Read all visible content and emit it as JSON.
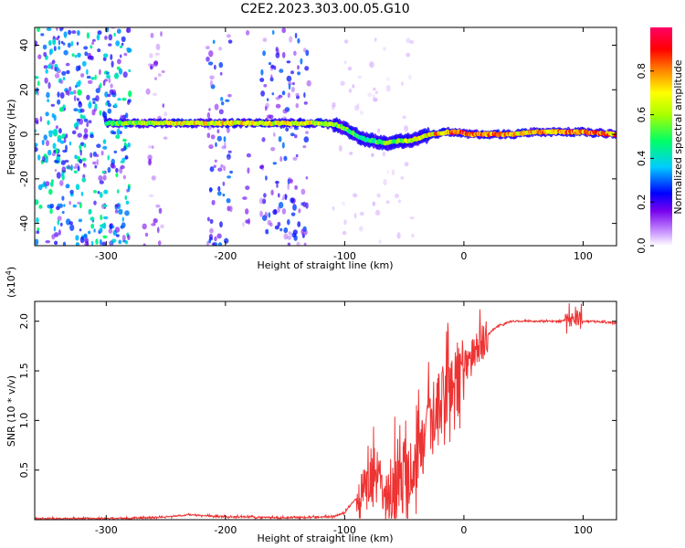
{
  "figure_title": "C2E2.2023.303.00.05.G10",
  "chart_data": [
    {
      "type": "heatmap",
      "title": "C2E2.2023.303.00.05.G10",
      "xlabel": "Height of straight line (km)",
      "ylabel": "Frequency (Hz)",
      "xlim": [
        -360,
        128
      ],
      "ylim": [
        -50,
        48
      ],
      "xticks": [
        -300,
        -200,
        -100,
        0,
        100
      ],
      "yticks": [
        -40,
        -20,
        0,
        20,
        40
      ],
      "xtick_labels": [
        "-300",
        "-200",
        "-100",
        "0",
        "100"
      ],
      "ytick_labels": [
        "-40",
        "-20",
        "0",
        "20",
        "40"
      ],
      "colorbar": {
        "label": "Normalized spectral amplitude",
        "range": [
          0,
          1
        ],
        "ticks": [
          0,
          0.2,
          0.4,
          0.6,
          0.8
        ],
        "tick_labels": [
          "0.0",
          "0.2",
          "0.4",
          "0.6",
          "0.8"
        ],
        "colors": [
          "#ffffff",
          "#cc99ff",
          "#7700ee",
          "#0000ff",
          "#00ccff",
          "#00ff66",
          "#aaff00",
          "#ffff00",
          "#ff8800",
          "#ff0000",
          "#ff0066"
        ]
      },
      "ridge": {
        "x": [
          -300,
          -280,
          -250,
          -200,
          -150,
          -120,
          -105,
          -95,
          -85,
          -75,
          -65,
          -55,
          -45,
          -35,
          -25,
          -15,
          -5,
          5,
          20,
          40,
          60,
          80,
          100,
          128
        ],
        "freq": [
          5,
          5,
          5,
          5,
          5,
          5,
          4,
          1,
          -2,
          -3,
          -4,
          -3,
          -3,
          -1,
          0,
          1,
          1,
          0,
          0,
          0,
          1,
          1,
          1,
          0
        ],
        "amplitude": [
          0.5,
          0.6,
          0.7,
          0.75,
          0.7,
          0.72,
          0.62,
          0.55,
          0.5,
          0.55,
          0.6,
          0.62,
          0.65,
          0.72,
          0.78,
          0.85,
          0.88,
          0.9,
          0.88,
          0.8,
          0.8,
          0.86,
          0.86,
          0.82
        ]
      },
      "noise_bands": [
        {
          "x": [
            -360,
            -280
          ],
          "level": 0.3
        },
        {
          "x": [
            -268,
            -250
          ],
          "level": 0.12
        },
        {
          "x": [
            -215,
            -195
          ],
          "level": 0.2
        },
        {
          "x": [
            -185,
            -180
          ],
          "level": 0.12
        },
        {
          "x": [
            -170,
            -130
          ],
          "level": 0.2
        },
        {
          "x": [
            -110,
            -40
          ],
          "level": 0.05
        }
      ]
    },
    {
      "type": "line",
      "xlabel": "Height of straight line (km)",
      "ylabel": "SNR (10 * v/v)",
      "y_scale_label": "(x10",
      "y_scale_exp": "4",
      "ylabel_scale": "(x10^4)",
      "xlim": [
        -360,
        128
      ],
      "ylim": [
        0,
        2.2
      ],
      "xticks": [
        -300,
        -200,
        -100,
        0,
        100
      ],
      "yticks": [
        0.5,
        1.0,
        1.5,
        2.0
      ],
      "xtick_labels": [
        "-300",
        "-200",
        "-100",
        "0",
        "100"
      ],
      "ytick_labels": [
        "0.5",
        "1.0",
        "1.5",
        "2.0"
      ],
      "color": "#ee3333",
      "series": [
        {
          "name": "SNR",
          "x": [
            -360,
            -300,
            -260,
            -240,
            -230,
            -220,
            -200,
            -150,
            -110,
            -100,
            -95,
            -90,
            -85,
            -80,
            -75,
            -70,
            -65,
            -60,
            -55,
            -50,
            -45,
            -40,
            -35,
            -30,
            -25,
            -20,
            -15,
            -10,
            -5,
            0,
            5,
            10,
            15,
            20,
            25,
            30,
            40,
            60,
            80,
            90,
            95,
            100,
            110,
            128
          ],
          "y": [
            0.01,
            0.01,
            0.02,
            0.04,
            0.05,
            0.04,
            0.03,
            0.02,
            0.03,
            0.07,
            0.15,
            0.22,
            0.3,
            0.35,
            0.55,
            0.4,
            0.3,
            0.25,
            0.35,
            0.4,
            0.5,
            0.6,
            0.7,
            0.85,
            1.0,
            1.15,
            1.3,
            1.4,
            1.5,
            1.55,
            1.6,
            1.7,
            1.8,
            1.86,
            1.92,
            1.96,
            2.0,
            2.0,
            2.0,
            2.02,
            2.05,
            2.0,
            2.0,
            1.98
          ]
        }
      ],
      "noise_regions": [
        {
          "x": [
            -90,
            -60
          ],
          "amp": 0.35
        },
        {
          "x": [
            -60,
            -30
          ],
          "amp": 0.55
        },
        {
          "x": [
            -30,
            0
          ],
          "amp": 0.6
        },
        {
          "x": [
            0,
            20
          ],
          "amp": 0.3
        },
        {
          "x": [
            85,
            100
          ],
          "amp": 0.12
        }
      ]
    }
  ]
}
